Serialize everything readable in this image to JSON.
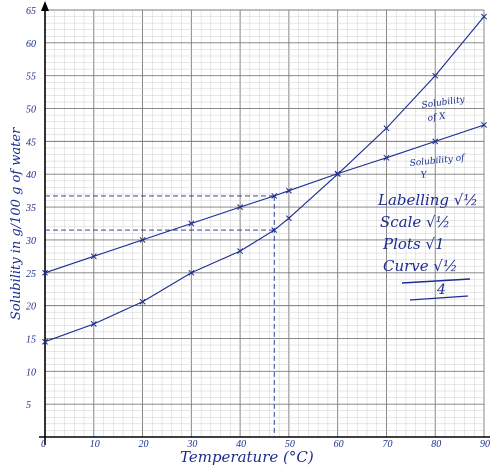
{
  "chart_data": {
    "type": "line",
    "xlabel": "Temperature (°C)",
    "ylabel": "Solubility in g/100 g of water",
    "xlim": [
      0,
      90
    ],
    "ylim": [
      0,
      65
    ],
    "x_ticks": [
      "0",
      "10",
      "20",
      "30",
      "40",
      "50",
      "60",
      "70",
      "80",
      "90"
    ],
    "y_ticks": [
      "5",
      "10",
      "15",
      "20",
      "25",
      "30",
      "35",
      "40",
      "45",
      "50",
      "55",
      "60",
      "65"
    ],
    "grid": true,
    "series": [
      {
        "name": "Solubility of X",
        "x": [
          0,
          10,
          20,
          30,
          40,
          47,
          50,
          60,
          70,
          80,
          90
        ],
        "y": [
          14.5,
          17.2,
          20.6,
          25,
          28.3,
          31.5,
          33.3,
          40,
          47,
          55,
          64
        ]
      },
      {
        "name": "Solubility of Y",
        "x": [
          0,
          10,
          20,
          30,
          40,
          47,
          50,
          60,
          70,
          80,
          90
        ],
        "y": [
          25,
          27.5,
          30,
          32.5,
          35,
          36.7,
          37.5,
          40.1,
          42.5,
          45,
          47.5
        ]
      }
    ],
    "guides": [
      {
        "x": 47,
        "y": 31.5
      },
      {
        "x": 47,
        "y": 36.7
      }
    ],
    "annotations": {
      "series_x_label": [
        "Solubility",
        "of X"
      ],
      "series_y_label": [
        "Solubility of",
        "Y"
      ],
      "marking": [
        "Labelling √½",
        "Scale √½",
        "Plots √1",
        "Curve √½"
      ],
      "total": "4"
    },
    "colors": {
      "ink": "#1c2e8f",
      "grid_major": "#7a7a7a",
      "grid_minor": "#c4c4c4"
    }
  }
}
